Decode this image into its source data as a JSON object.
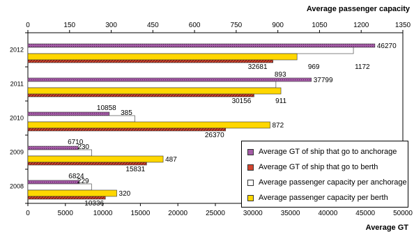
{
  "chart_data": {
    "type": "bar",
    "orientation": "horizontal",
    "categories": [
      "2012",
      "2011",
      "2010",
      "2009",
      "2008"
    ],
    "top_axis": {
      "label": "Average passenger capacity",
      "range": [
        0,
        1350
      ],
      "ticks": [
        "0",
        "150",
        "300",
        "450",
        "600",
        "750",
        "900",
        "1050",
        "1200",
        "1350"
      ]
    },
    "bottom_axis": {
      "label": "Average GT",
      "range": [
        0,
        50000
      ],
      "ticks": [
        "0",
        "5000",
        "10000",
        "15000",
        "20000",
        "25000",
        "30000",
        "35000",
        "40000",
        "45000",
        "50000"
      ]
    },
    "series": [
      {
        "name": "Average GT of ship that go to anchorage",
        "axis": "bottom",
        "color": "#9b4f96",
        "values": [
          46270,
          37799,
          10858,
          6710,
          6824
        ],
        "labels": [
          "46270",
          "37799",
          "10858",
          "6710",
          "6824"
        ]
      },
      {
        "name": "Average passenger capacity per anchorage",
        "axis": "top",
        "color": "#ffffff",
        "values": [
          1172,
          893,
          385,
          230,
          229
        ],
        "labels": [
          "1172",
          "893",
          "385",
          "230",
          "229"
        ]
      },
      {
        "name": "Average passenger capacity per berth",
        "axis": "top",
        "color": "#ffd700",
        "values": [
          969,
          911,
          872,
          487,
          320
        ],
        "labels": [
          "969",
          "911",
          "872",
          "487",
          "320"
        ]
      },
      {
        "name": "Average GT of ship that go to berth",
        "axis": "bottom",
        "color": "#c0392b",
        "values": [
          32681,
          30156,
          26370,
          15831,
          10336
        ],
        "labels": [
          "32681",
          "30156",
          "26370",
          "15831",
          "10336"
        ]
      }
    ],
    "legend_order": [
      0,
      3,
      1,
      2
    ],
    "legend_position": "bottom-right",
    "grid": false
  }
}
